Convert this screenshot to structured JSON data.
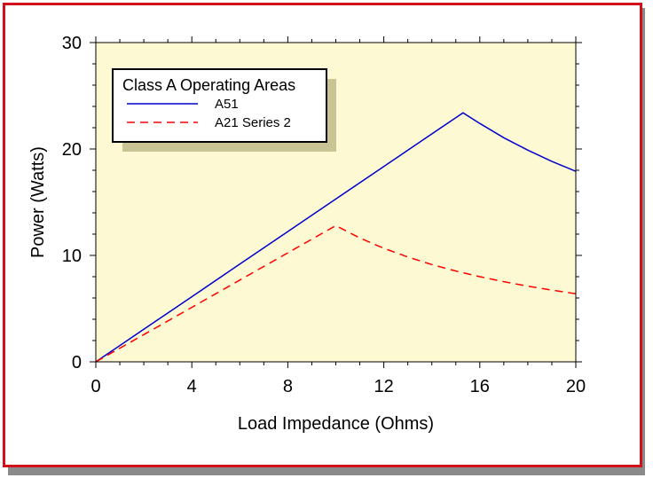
{
  "chart_data": {
    "type": "line",
    "title": "",
    "xlabel": "Load Impedance (Ohms)",
    "ylabel": "Power (Watts)",
    "xlim": [
      0,
      20
    ],
    "ylim": [
      0,
      30
    ],
    "xticks": [
      0,
      4,
      8,
      12,
      16,
      20
    ],
    "yticks": [
      0,
      10,
      20,
      30
    ],
    "x_tick_labels": [
      "0",
      "4",
      "8",
      "12",
      "16",
      "20"
    ],
    "y_tick_labels": [
      "0",
      "10",
      "20",
      "30"
    ],
    "grid": false,
    "plot_background": "#fdfad3",
    "legend": {
      "title": "Class A Operating Areas",
      "placement": "top-left"
    },
    "series": [
      {
        "name": "A51",
        "color": "#0000cc",
        "style": "solid",
        "x": [
          0,
          2,
          4,
          6,
          8,
          10,
          12,
          14,
          15.3,
          16,
          17,
          18,
          19,
          20
        ],
        "y": [
          0,
          3.06,
          6.12,
          9.18,
          12.24,
          15.3,
          18.36,
          21.42,
          23.4,
          22.4,
          21.06,
          19.89,
          18.84,
          17.9
        ]
      },
      {
        "name": "A21 Series 2",
        "color": "#ff0000",
        "style": "dashed",
        "x": [
          0,
          2,
          4,
          6,
          8,
          10,
          11,
          12,
          13,
          14,
          15,
          16,
          17,
          18,
          19,
          20
        ],
        "y": [
          0,
          2.56,
          5.12,
          7.68,
          10.24,
          12.8,
          11.64,
          10.67,
          9.85,
          9.14,
          8.53,
          8.0,
          7.53,
          7.11,
          6.74,
          6.4
        ]
      }
    ]
  }
}
